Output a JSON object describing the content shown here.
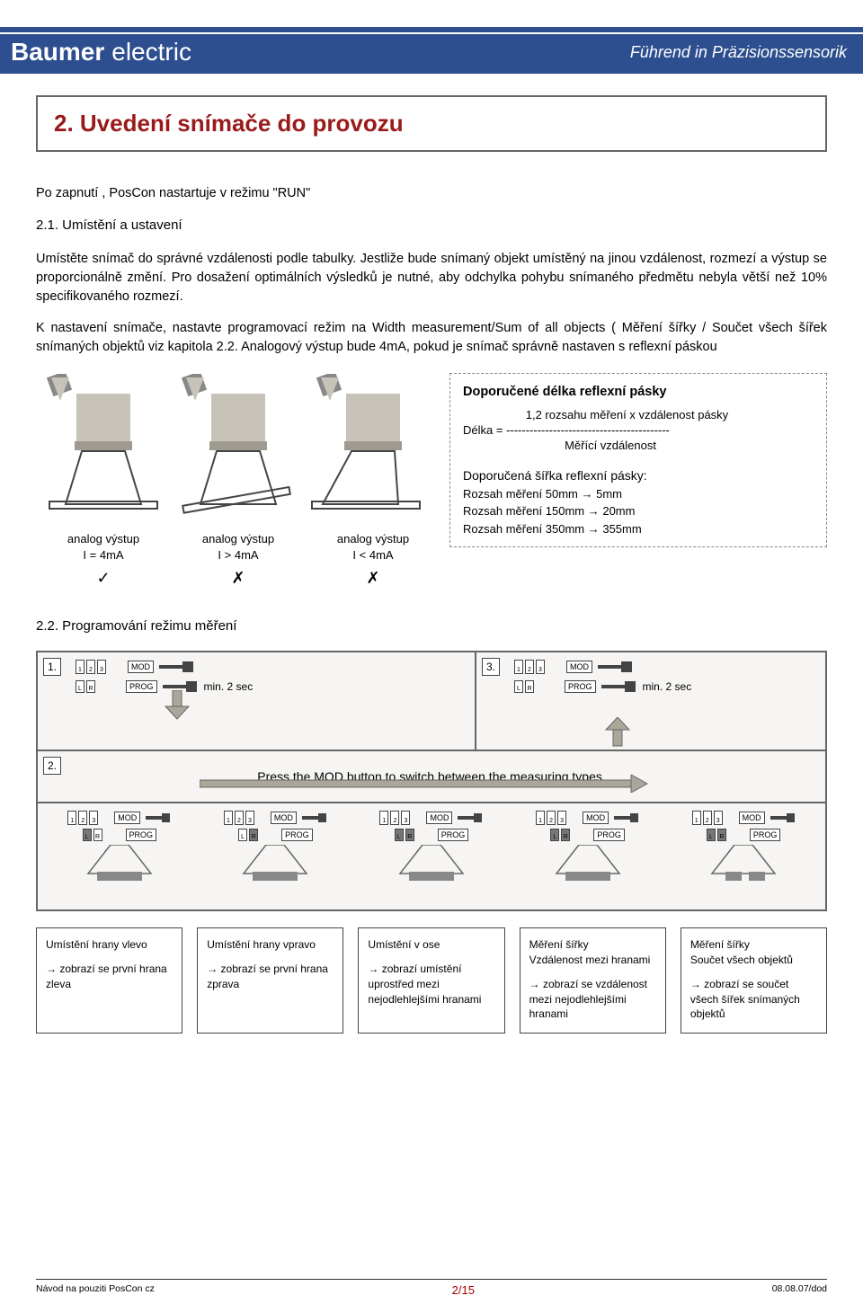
{
  "brand": {
    "name_bold": "Baumer",
    "name_thin": "electric",
    "tagline": "Führend in Präzisionssensorik"
  },
  "section_title": "2. Uvedení snímače do provozu",
  "intro": "Po zapnutí , PosCon nastartuje v režimu \"RUN\"",
  "sub_21": "2.1. Umístění a ustavení",
  "para1": "Umístěte snímač do správné vzdálenosti podle tabulky. Jestliže bude snímaný objekt umístěný na jinou vzdálenost, rozmezí a výstup se proporcionálně změní. Pro dosažení optimálních výsledků je nutné, aby odchylka pohybu snímaného předmětu nebyla větší než 10% specifikovaného rozmezí.",
  "para2": "K nastavení snímače, nastavte programovací režim na Width measurement/Sum of all objects ( Měření šířky / Součet všech šířek snímaných objektů viz kapitola 2.2. Analogový výstup bude 4mA, pokud je snímač správně nastaven s reflexní páskou",
  "diagram_labels": [
    {
      "line1": "analog výstup",
      "line2": "I = 4mA",
      "mark": "✓"
    },
    {
      "line1": "analog výstup",
      "line2": "I > 4mA",
      "mark": "✗"
    },
    {
      "line1": "analog výstup",
      "line2": "I < 4mA",
      "mark": "✗"
    }
  ],
  "recbox": {
    "title": "Doporučené délka reflexní pásky",
    "formula_top": "1,2 rozsahu měření x vzdálenost pásky",
    "formula_label": "Délka = ",
    "formula_divider": "------------------------------------------",
    "formula_bottom": "Měřící vzdálenost",
    "width_title": "Doporučená šířka reflexní pásky:",
    "rows": [
      "Rozsah měření  50mm → 5mm",
      "Rozsah měření 150mm → 20mm",
      "Rozsah měření 350mm → 355mm"
    ]
  },
  "sub_22": "2.2. Programování režimu měření",
  "bd": {
    "step1": "1.",
    "step2": "2.",
    "step3": "3.",
    "mod": "MOD",
    "prog": "PROG",
    "min2sec": "min. 2 sec",
    "press_text": "Press the MOD button to switch between the measuring types.",
    "lbl_L": "L",
    "lbl_R": "R",
    "seg1": "1",
    "seg2": "2",
    "seg3": "3"
  },
  "modes": [
    {
      "title": "Umístění hrany vlevo",
      "desc": "→ zobrazí se první hrana zleva"
    },
    {
      "title": "Umístění hrany vpravo",
      "desc": "→ zobrazí se první hrana zprava"
    },
    {
      "title": "Umístění v ose",
      "desc": "→ zobrazí umístění uprostřed mezi nejodlehlejšími hranami"
    },
    {
      "title": "Měření šířky\nVzdálenost mezi hranami",
      "desc": "→ zobrazí se vzdálenost mezi nejodlehlejšími hranami"
    },
    {
      "title": "Měření šířky\nSoučet všech objektů",
      "desc": "→ zobrazí se součet všech šířek snímaných objektů"
    }
  ],
  "footer": {
    "left": "Návod na pouziti PosCon cz",
    "mid": "2/15",
    "right": "08.08.07/dod"
  },
  "colors": {
    "brand_blue": "#2d4e8f",
    "title_red": "#9a1a1a",
    "arrow_gray": "#aaa69a",
    "block_gray": "#c7c3b9"
  }
}
